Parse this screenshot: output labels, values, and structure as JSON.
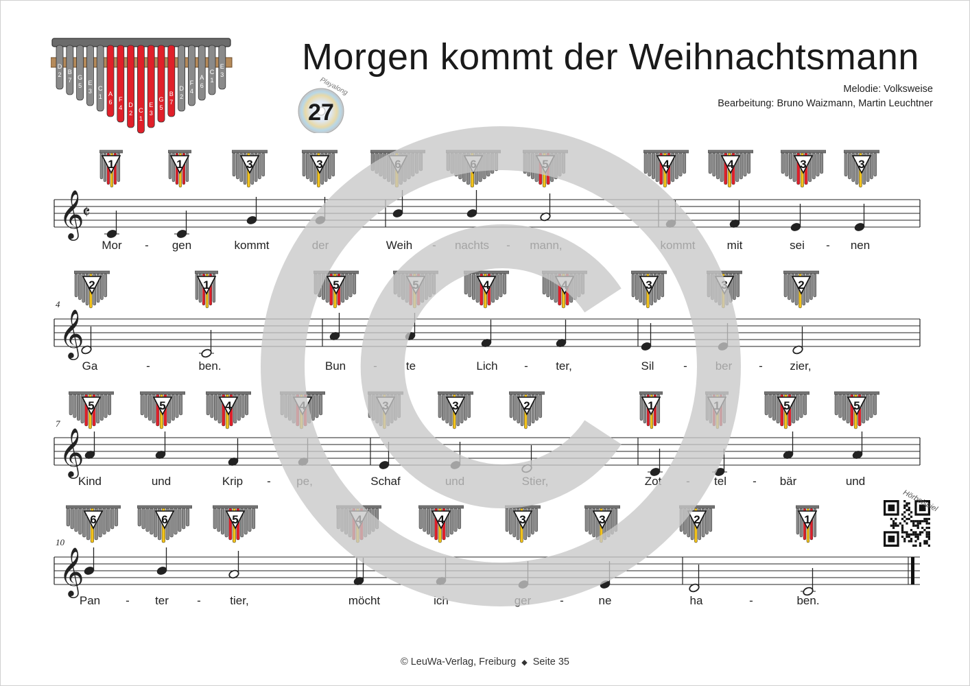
{
  "title": "Morgen kommt der Weihnachtsmann",
  "credits": {
    "melody": "Melodie: Volksweise",
    "arrangement": "Bearbeitung: Bruno Waizmann, Martin Leuchtner"
  },
  "playalong": {
    "label": "Playalong",
    "number": "27"
  },
  "kalimba_tines": {
    "left_side": [
      "D",
      "B",
      "G",
      "E",
      "C"
    ],
    "center": [
      "A",
      "F",
      "D",
      "C",
      "E",
      "G"
    ],
    "right_side": [
      "B",
      "D",
      "F",
      "A",
      "C",
      "E"
    ],
    "numbers_left": [
      "2",
      "7",
      "5",
      "3",
      "1"
    ],
    "numbers_center": [
      "6",
      "4",
      "2",
      "1",
      "3",
      "5"
    ],
    "numbers_right": [
      "7",
      "2",
      "4",
      "6",
      "1",
      "3"
    ]
  },
  "systems": [
    {
      "measure_number": "",
      "tabs": [
        "1",
        "1",
        "3",
        "3",
        "6",
        "6",
        "5",
        "4",
        "4",
        "3",
        "3"
      ],
      "lyrics": [
        "Mor",
        "-",
        "gen",
        "kommt",
        "der",
        "Weih",
        "-",
        "nachts",
        "-",
        "mann,",
        "kommt",
        "mit",
        "sei",
        "-",
        "nen"
      ]
    },
    {
      "measure_number": "4",
      "tabs": [
        "2",
        "1",
        "5",
        "5",
        "4",
        "4",
        "3",
        "3",
        "2"
      ],
      "lyrics": [
        "Ga",
        "-",
        "ben.",
        "Bun",
        "-",
        "te",
        "Lich",
        "-",
        "ter,",
        "Sil",
        "-",
        "ber",
        "-",
        "zier,"
      ]
    },
    {
      "measure_number": "7",
      "tabs": [
        "5",
        "5",
        "4",
        "4",
        "3",
        "3",
        "2",
        "1",
        "1",
        "5",
        "5"
      ],
      "lyrics": [
        "Kind",
        "und",
        "Krip",
        "-",
        "pe,",
        "Schaf",
        "und",
        "Stier,",
        "Zot",
        "-",
        "tel",
        "-",
        "bär",
        "und"
      ]
    },
    {
      "measure_number": "10",
      "tabs": [
        "6",
        "6",
        "5",
        "4",
        "4",
        "3",
        "3",
        "2",
        "1"
      ],
      "lyrics": [
        "Pan",
        "-",
        "ter",
        "-",
        "tier,",
        "möcht",
        "ich",
        "ger",
        "-",
        "ne",
        "ha",
        "-",
        "ben."
      ]
    }
  ],
  "hoerbeispiel": "Hörbeispiel",
  "footer": {
    "publisher": "© LeuWa-Verlag, Freiburg",
    "separator": "◆",
    "page": "Seite 35"
  },
  "colors": {
    "tine_grey": "#8a8a8a",
    "tine_red": "#e0202a",
    "tine_yellow": "#f2c21a",
    "watermark": "#c8c8c8"
  }
}
